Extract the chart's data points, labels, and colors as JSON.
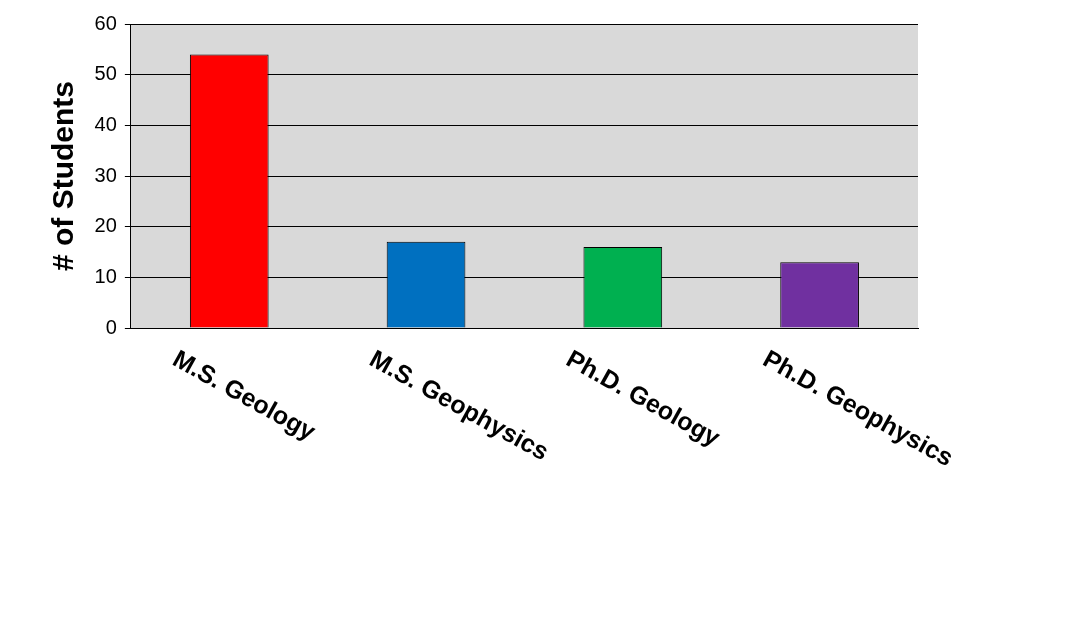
{
  "chart_data": {
    "type": "bar",
    "ylabel": "# of Students",
    "categories": [
      "M.S. Geology",
      "M.S. Geophysics",
      "Ph.D. Geology",
      "Ph.D. Geophysics"
    ],
    "values": [
      54,
      17,
      16,
      13
    ],
    "colors": [
      "#ff0000",
      "#0070c0",
      "#00b050",
      "#7030a0"
    ],
    "ylim": [
      0,
      60
    ],
    "yticks": [
      0,
      10,
      20,
      30,
      40,
      50,
      60
    ],
    "grid": "y",
    "legend": false
  }
}
